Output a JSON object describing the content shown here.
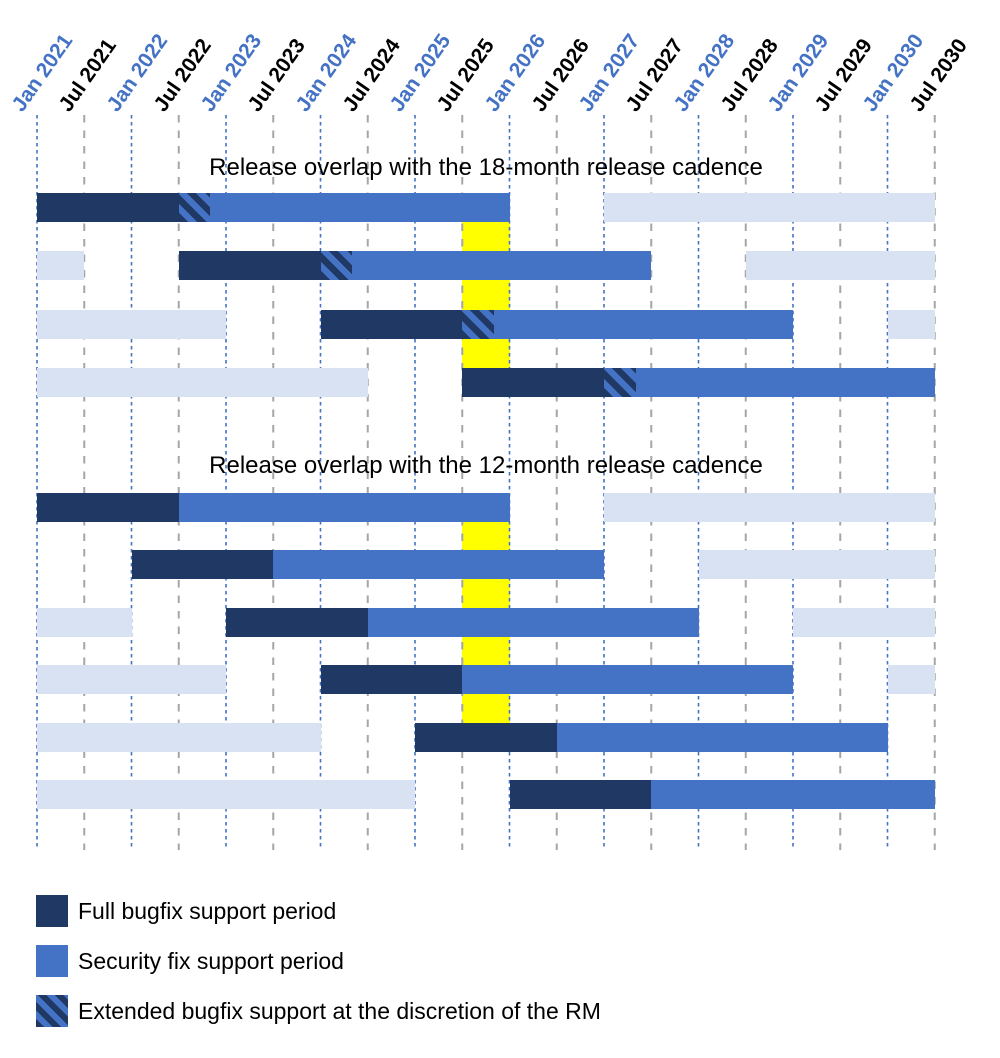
{
  "chart_data": {
    "type": "bar",
    "variant": "gantt-release-timeline",
    "time_axis": {
      "unit": "months since Jan 2021",
      "tick_interval_months": 6,
      "ticks": [
        {
          "label": "Jan 2021",
          "month": 0,
          "style": "jan"
        },
        {
          "label": "Jul 2021",
          "month": 6,
          "style": "jul"
        },
        {
          "label": "Jan 2022",
          "month": 12,
          "style": "jan"
        },
        {
          "label": "Jul 2022",
          "month": 18,
          "style": "jul"
        },
        {
          "label": "Jan 2023",
          "month": 24,
          "style": "jan"
        },
        {
          "label": "Jul 2023",
          "month": 30,
          "style": "jul"
        },
        {
          "label": "Jan 2024",
          "month": 36,
          "style": "jan"
        },
        {
          "label": "Jul 2024",
          "month": 42,
          "style": "jul"
        },
        {
          "label": "Jan 2025",
          "month": 48,
          "style": "jan"
        },
        {
          "label": "Jul 2025",
          "month": 54,
          "style": "jul"
        },
        {
          "label": "Jan 2026",
          "month": 60,
          "style": "jan"
        },
        {
          "label": "Jul 2026",
          "month": 66,
          "style": "jul"
        },
        {
          "label": "Jan 2027",
          "month": 72,
          "style": "jan"
        },
        {
          "label": "Jul 2027",
          "month": 78,
          "style": "jul"
        },
        {
          "label": "Jan 2028",
          "month": 84,
          "style": "jan"
        },
        {
          "label": "Jul 2028",
          "month": 90,
          "style": "jul"
        },
        {
          "label": "Jan 2029",
          "month": 96,
          "style": "jan"
        },
        {
          "label": "Jul 2029",
          "month": 102,
          "style": "jul"
        },
        {
          "label": "Jan 2030",
          "month": 108,
          "style": "jan"
        },
        {
          "label": "Jul 2030",
          "month": 114,
          "style": "jul"
        }
      ]
    },
    "sections": [
      {
        "title": "Release overlap with the 18-month release cadence",
        "cadence_months": 18,
        "highlight": {
          "from_month": 54,
          "to_month": 60,
          "from_label": "Jul 2025",
          "to_label": "Jan 2026",
          "rows_spanned": 4
        },
        "rows": [
          {
            "segments": [
              {
                "kind": "full_bugfix",
                "from_month": 0,
                "to_month": 18
              },
              {
                "kind": "extended_bugfix",
                "from_month": 18,
                "to_month": 22
              },
              {
                "kind": "security_fix",
                "from_month": 22,
                "to_month": 60
              },
              {
                "kind": "adjacent_release",
                "from_month": 72,
                "to_month": 114
              }
            ]
          },
          {
            "segments": [
              {
                "kind": "adjacent_release",
                "from_month": 0,
                "to_month": 6
              },
              {
                "kind": "full_bugfix",
                "from_month": 18,
                "to_month": 36
              },
              {
                "kind": "extended_bugfix",
                "from_month": 36,
                "to_month": 40
              },
              {
                "kind": "security_fix",
                "from_month": 40,
                "to_month": 78
              },
              {
                "kind": "adjacent_release",
                "from_month": 90,
                "to_month": 114
              }
            ]
          },
          {
            "segments": [
              {
                "kind": "adjacent_release",
                "from_month": 0,
                "to_month": 24
              },
              {
                "kind": "full_bugfix",
                "from_month": 36,
                "to_month": 54
              },
              {
                "kind": "extended_bugfix",
                "from_month": 54,
                "to_month": 58
              },
              {
                "kind": "security_fix",
                "from_month": 58,
                "to_month": 96
              },
              {
                "kind": "adjacent_release",
                "from_month": 108,
                "to_month": 114
              }
            ]
          },
          {
            "segments": [
              {
                "kind": "adjacent_release",
                "from_month": 0,
                "to_month": 42
              },
              {
                "kind": "full_bugfix",
                "from_month": 54,
                "to_month": 72
              },
              {
                "kind": "extended_bugfix",
                "from_month": 72,
                "to_month": 76
              },
              {
                "kind": "security_fix",
                "from_month": 76,
                "to_month": 114
              }
            ]
          }
        ]
      },
      {
        "title": "Release overlap with the 12-month release cadence",
        "cadence_months": 12,
        "highlight": {
          "from_month": 54,
          "to_month": 60,
          "from_label": "Jul 2025",
          "to_label": "Jan 2026",
          "rows_spanned": 5
        },
        "rows": [
          {
            "segments": [
              {
                "kind": "full_bugfix",
                "from_month": 0,
                "to_month": 18
              },
              {
                "kind": "security_fix",
                "from_month": 18,
                "to_month": 60
              },
              {
                "kind": "adjacent_release",
                "from_month": 72,
                "to_month": 114
              }
            ]
          },
          {
            "segments": [
              {
                "kind": "full_bugfix",
                "from_month": 12,
                "to_month": 30
              },
              {
                "kind": "security_fix",
                "from_month": 30,
                "to_month": 72
              },
              {
                "kind": "adjacent_release",
                "from_month": 84,
                "to_month": 114
              }
            ]
          },
          {
            "segments": [
              {
                "kind": "adjacent_release",
                "from_month": 0,
                "to_month": 12
              },
              {
                "kind": "full_bugfix",
                "from_month": 24,
                "to_month": 42
              },
              {
                "kind": "security_fix",
                "from_month": 42,
                "to_month": 84
              },
              {
                "kind": "adjacent_release",
                "from_month": 96,
                "to_month": 114
              }
            ]
          },
          {
            "segments": [
              {
                "kind": "adjacent_release",
                "from_month": 0,
                "to_month": 24
              },
              {
                "kind": "full_bugfix",
                "from_month": 36,
                "to_month": 54
              },
              {
                "kind": "security_fix",
                "from_month": 54,
                "to_month": 96
              },
              {
                "kind": "adjacent_release",
                "from_month": 108,
                "to_month": 114
              }
            ]
          },
          {
            "segments": [
              {
                "kind": "adjacent_release",
                "from_month": 0,
                "to_month": 36
              },
              {
                "kind": "full_bugfix",
                "from_month": 48,
                "to_month": 66
              },
              {
                "kind": "security_fix",
                "from_month": 66,
                "to_month": 108
              }
            ]
          },
          {
            "segments": [
              {
                "kind": "adjacent_release",
                "from_month": 0,
                "to_month": 48
              },
              {
                "kind": "full_bugfix",
                "from_month": 60,
                "to_month": 78
              },
              {
                "kind": "security_fix",
                "from_month": 78,
                "to_month": 114
              }
            ]
          }
        ]
      }
    ],
    "legend": [
      {
        "label": "Full bugfix support period",
        "kind": "full_bugfix",
        "swatch": "solid-dark"
      },
      {
        "label": "Security fix support period",
        "kind": "security_fix",
        "swatch": "solid-blue"
      },
      {
        "label": "Extended bugfix support at the discretion of the RM",
        "kind": "extended_bugfix",
        "swatch": "hatched"
      }
    ],
    "colors": {
      "full_bugfix": "#1F3864",
      "security_fix": "#4472C4",
      "adjacent_release": "#D9E2F3",
      "highlight": "#FFFF00",
      "jan_tick_label": "#4472C4",
      "jul_tick_label": "#000000",
      "jan_gridline": "#4472C4",
      "jul_gridline": "#A6A6A6"
    }
  }
}
